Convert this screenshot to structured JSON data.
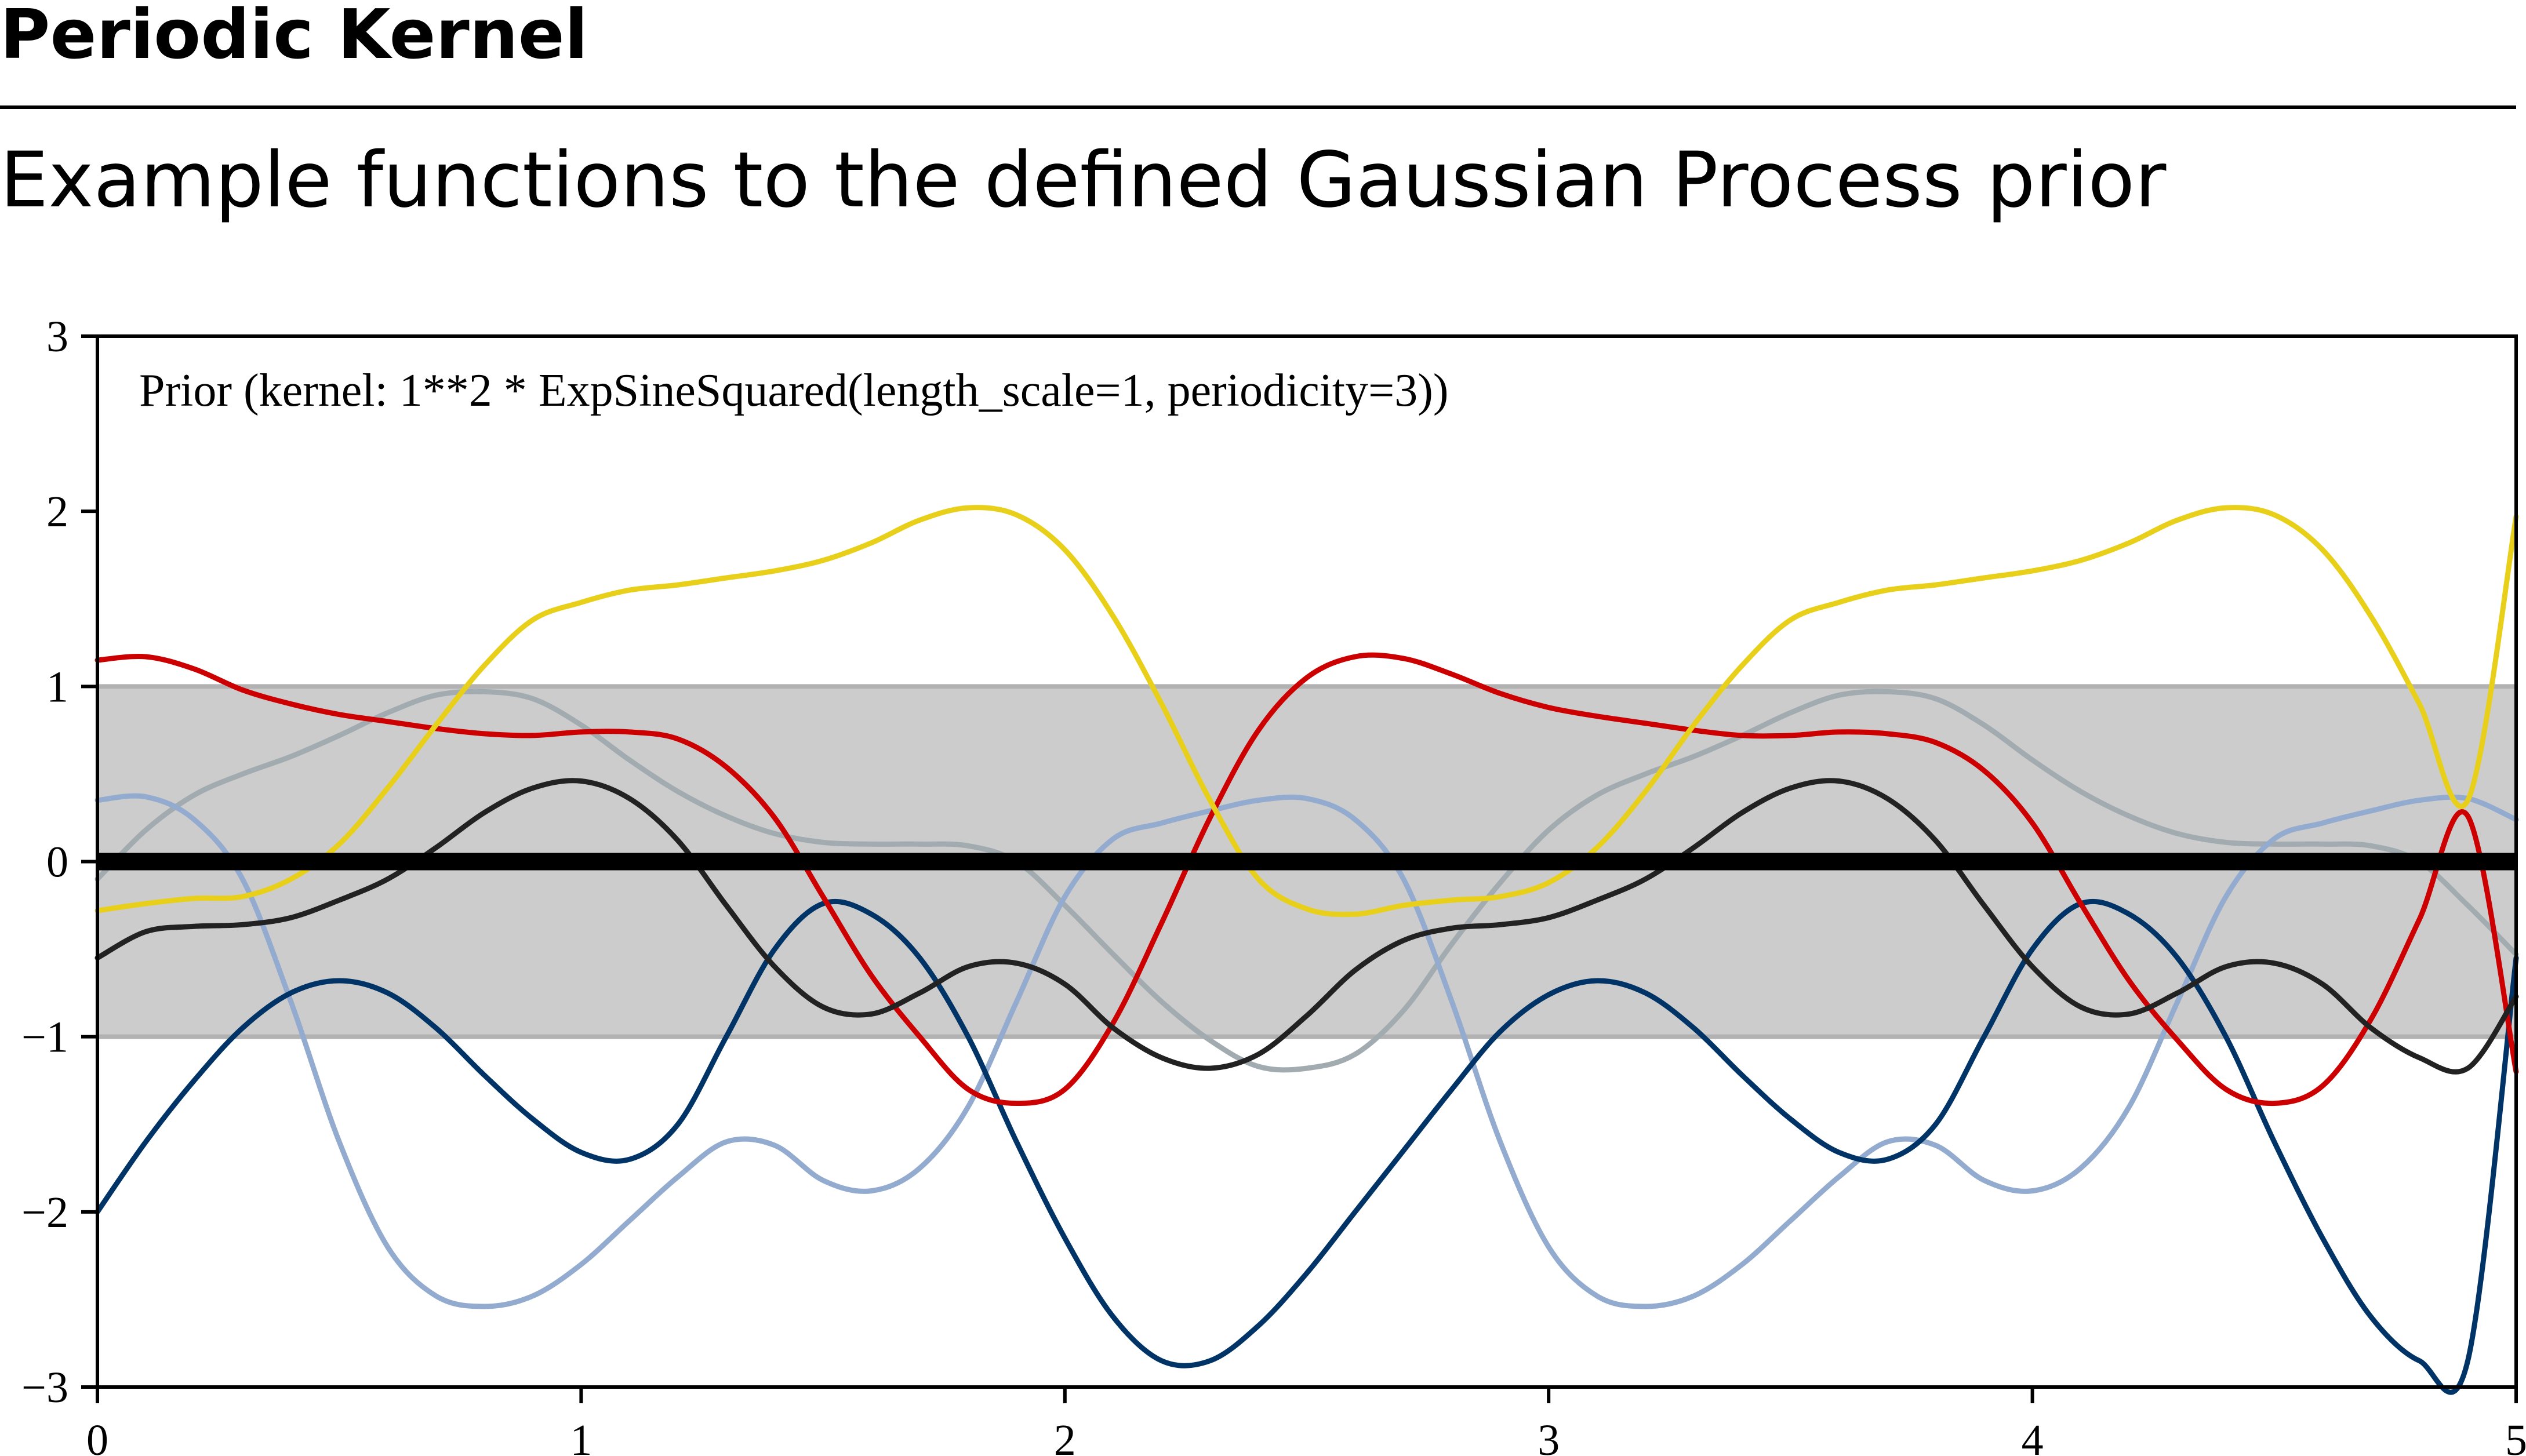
{
  "page": {
    "title": "Periodic Kernel",
    "subtitle": "Example functions to the defined Gaussian Process prior"
  },
  "chart_data": {
    "type": "line",
    "annotation": "Prior (kernel:  1**2 * ExpSineSquared(length_scale=1, periodicity=3))",
    "xlim": [
      0,
      5
    ],
    "ylim": [
      -3,
      3
    ],
    "x_ticks": [
      "0",
      "1",
      "2",
      "3",
      "4",
      "5"
    ],
    "y_ticks": [
      "−3",
      "−2",
      "−1",
      "0",
      "1",
      "2",
      "3"
    ],
    "x_tick_values": [
      0,
      1,
      2,
      3,
      4,
      5
    ],
    "y_tick_values": [
      -3,
      -2,
      -1,
      0,
      1,
      2,
      3
    ],
    "grid": false,
    "band": {
      "y_low": -1,
      "y_high": 1,
      "fill_color": "#cccccc",
      "edge_color": "#b2b2b2"
    },
    "mean": {
      "value": 0,
      "color": "#000000"
    },
    "x": [
      0,
      0.1,
      0.2,
      0.3,
      0.4,
      0.5,
      0.6,
      0.7,
      0.8,
      0.9,
      1.0,
      1.1,
      1.2,
      1.3,
      1.4,
      1.5,
      1.6,
      1.7,
      1.8,
      1.9,
      2.0,
      2.1,
      2.2,
      2.3,
      2.4,
      2.5,
      2.6,
      2.7,
      2.8,
      2.9,
      3.0,
      3.1,
      3.2,
      3.3,
      3.4,
      3.5,
      3.6,
      3.7,
      3.8,
      3.9,
      4.0,
      4.1,
      4.2,
      4.3,
      4.4,
      4.5,
      4.6,
      4.7,
      4.8,
      4.9,
      5.0
    ],
    "series": [
      {
        "color": "#a2acb0",
        "values": [
          -0.1,
          0.18,
          0.38,
          0.5,
          0.6,
          0.72,
          0.85,
          0.95,
          0.97,
          0.93,
          0.78,
          0.58,
          0.4,
          0.26,
          0.16,
          0.11,
          0.1,
          0.1,
          0.09,
          0.0,
          -0.25,
          -0.53,
          -0.8,
          -1.02,
          -1.17,
          -1.18,
          -1.1,
          -0.85,
          -0.47,
          -0.12,
          0.18,
          0.38,
          0.5,
          0.6,
          0.72,
          0.85,
          0.95,
          0.97,
          0.93,
          0.78,
          0.58,
          0.4,
          0.26,
          0.16,
          0.11,
          0.1,
          0.1,
          0.09,
          0.0,
          -0.25,
          -0.53
        ]
      },
      {
        "color": "#93abcf",
        "values": [
          0.35,
          0.37,
          0.24,
          -0.1,
          -0.8,
          -1.6,
          -2.2,
          -2.48,
          -2.54,
          -2.48,
          -2.3,
          -2.05,
          -1.8,
          -1.6,
          -1.62,
          -1.82,
          -1.88,
          -1.75,
          -1.4,
          -0.8,
          -0.2,
          0.13,
          0.22,
          0.29,
          0.35,
          0.36,
          0.24,
          -0.1,
          -0.8,
          -1.6,
          -2.2,
          -2.48,
          -2.54,
          -2.48,
          -2.3,
          -2.05,
          -1.8,
          -1.6,
          -1.62,
          -1.82,
          -1.88,
          -1.75,
          -1.4,
          -0.8,
          -0.2,
          0.13,
          0.22,
          0.29,
          0.35,
          0.36,
          0.24
        ]
      },
      {
        "color": "#003366",
        "values": [
          -2.0,
          -1.6,
          -1.25,
          -0.95,
          -0.75,
          -0.68,
          -0.75,
          -0.95,
          -1.22,
          -1.47,
          -1.66,
          -1.7,
          -1.5,
          -1.0,
          -0.5,
          -0.24,
          -0.3,
          -0.55,
          -1.0,
          -1.6,
          -2.15,
          -2.6,
          -2.85,
          -2.85,
          -2.65,
          -2.35,
          -2.0,
          -1.65,
          -1.3,
          -0.97,
          -0.76,
          -0.68,
          -0.75,
          -0.95,
          -1.22,
          -1.47,
          -1.66,
          -1.7,
          -1.5,
          -1.0,
          -0.5,
          -0.24,
          -0.3,
          -0.55,
          -1.0,
          -1.6,
          -2.15,
          -2.6,
          -2.85,
          -2.85,
          -0.55
        ]
      },
      {
        "color": "#cc0000",
        "values": [
          1.15,
          1.17,
          1.1,
          0.98,
          0.9,
          0.84,
          0.8,
          0.76,
          0.73,
          0.72,
          0.74,
          0.74,
          0.7,
          0.54,
          0.25,
          -0.2,
          -0.65,
          -1.0,
          -1.3,
          -1.38,
          -1.3,
          -0.92,
          -0.35,
          0.25,
          0.75,
          1.05,
          1.17,
          1.16,
          1.07,
          0.96,
          0.88,
          0.83,
          0.79,
          0.75,
          0.72,
          0.72,
          0.74,
          0.73,
          0.68,
          0.52,
          0.22,
          -0.24,
          -0.68,
          -1.02,
          -1.3,
          -1.38,
          -1.28,
          -0.9,
          -0.33,
          0.26,
          -1.2
        ]
      },
      {
        "color": "#e8d01a",
        "values": [
          -0.28,
          -0.24,
          -0.21,
          -0.2,
          -0.1,
          0.1,
          0.42,
          0.78,
          1.12,
          1.38,
          1.48,
          1.55,
          1.58,
          1.62,
          1.66,
          1.72,
          1.82,
          1.95,
          2.02,
          1.98,
          1.78,
          1.4,
          0.9,
          0.35,
          -0.1,
          -0.27,
          -0.3,
          -0.25,
          -0.22,
          -0.2,
          -0.12,
          0.08,
          0.4,
          0.78,
          1.12,
          1.38,
          1.48,
          1.55,
          1.58,
          1.62,
          1.66,
          1.72,
          1.82,
          1.95,
          2.02,
          1.98,
          1.78,
          1.4,
          0.9,
          0.35,
          1.97
        ]
      },
      {
        "color": "#222222",
        "values": [
          -0.55,
          -0.4,
          -0.37,
          -0.36,
          -0.32,
          -0.22,
          -0.1,
          0.08,
          0.28,
          0.42,
          0.46,
          0.36,
          0.12,
          -0.25,
          -0.6,
          -0.83,
          -0.87,
          -0.75,
          -0.6,
          -0.58,
          -0.7,
          -0.95,
          -1.12,
          -1.18,
          -1.1,
          -0.88,
          -0.62,
          -0.45,
          -0.38,
          -0.36,
          -0.32,
          -0.22,
          -0.1,
          0.08,
          0.28,
          0.42,
          0.46,
          0.36,
          0.12,
          -0.25,
          -0.6,
          -0.83,
          -0.87,
          -0.75,
          -0.6,
          -0.58,
          -0.7,
          -0.95,
          -1.12,
          -1.18,
          -0.77
        ]
      }
    ]
  }
}
